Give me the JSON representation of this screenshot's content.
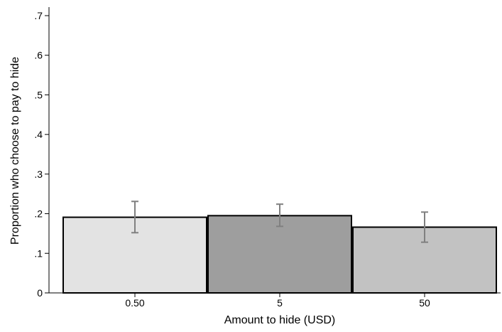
{
  "chart_data": {
    "type": "bar",
    "title": "",
    "xlabel": "Amount to hide (USD)",
    "ylabel": "Proportion who choose to pay to hide",
    "ylim": [
      0,
      0.7
    ],
    "yticks": [
      0,
      0.1,
      0.2,
      0.3,
      0.4,
      0.5,
      0.6,
      0.7
    ],
    "ytick_labels": [
      "0",
      ".1",
      ".2",
      ".3",
      ".4",
      ".5",
      ".6",
      ".7"
    ],
    "categories": [
      "0.50",
      "5",
      "50"
    ],
    "values": [
      0.191,
      0.195,
      0.166
    ],
    "error_low": [
      0.152,
      0.168,
      0.128
    ],
    "error_high": [
      0.231,
      0.224,
      0.204
    ],
    "bar_colors": [
      "#e3e3e3",
      "#9e9e9e",
      "#c2c2c2"
    ],
    "errorbar_color": "#808080",
    "grid": false,
    "legend": "none"
  }
}
